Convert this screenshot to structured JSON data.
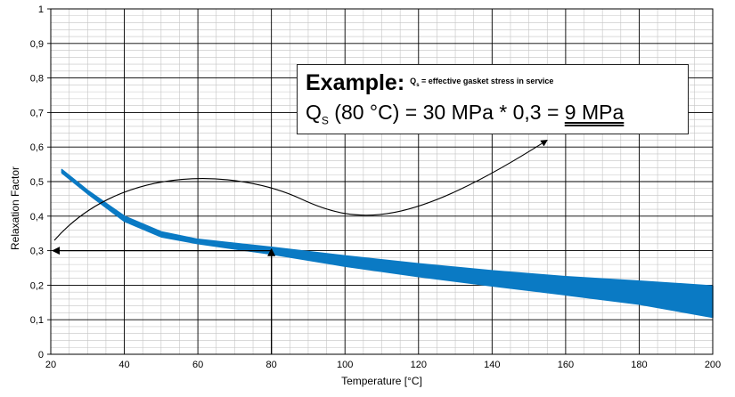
{
  "chart_data": {
    "type": "area",
    "title": "",
    "xlabel": "Temperature [°C]",
    "ylabel": "Relaxation Factor",
    "xlim": [
      20,
      200
    ],
    "ylim": [
      0,
      1
    ],
    "x_ticks": [
      "20",
      "40",
      "60",
      "80",
      "100",
      "120",
      "140",
      "160",
      "180",
      "200"
    ],
    "y_ticks": [
      "0",
      "0,1",
      "0,2",
      "0,3",
      "0,4",
      "0,5",
      "0,6",
      "0,7",
      "0,8",
      "0,9",
      "1"
    ],
    "grid": true,
    "band_color": "#0a7ac4",
    "series": [
      {
        "x": [
          23,
          30,
          40,
          50,
          60,
          80,
          100,
          120,
          140,
          160,
          180,
          200
        ],
        "upper": [
          0.535,
          0.475,
          0.4,
          0.355,
          0.333,
          0.31,
          0.285,
          0.262,
          0.242,
          0.225,
          0.212,
          0.198
        ],
        "lower": [
          0.525,
          0.465,
          0.385,
          0.34,
          0.32,
          0.29,
          0.255,
          0.225,
          0.198,
          0.172,
          0.145,
          0.107
        ]
      }
    ],
    "annotations": {
      "example_reading": {
        "x": 80,
        "y": 0.3
      },
      "curved_arrow": {
        "from": [
          20,
          0.33
        ],
        "to": [
          155,
          0.62
        ]
      }
    }
  },
  "example": {
    "heading": "Example:",
    "note_symbol": "Q",
    "note_symbol_sub": "s",
    "note_text": "= effective gasket stress in service",
    "formula_symbol": "Q",
    "formula_symbol_sub": "S",
    "formula_text": " (80 °C) = 30 MPa * 0,3 = ",
    "formula_result": "9 MPa"
  }
}
